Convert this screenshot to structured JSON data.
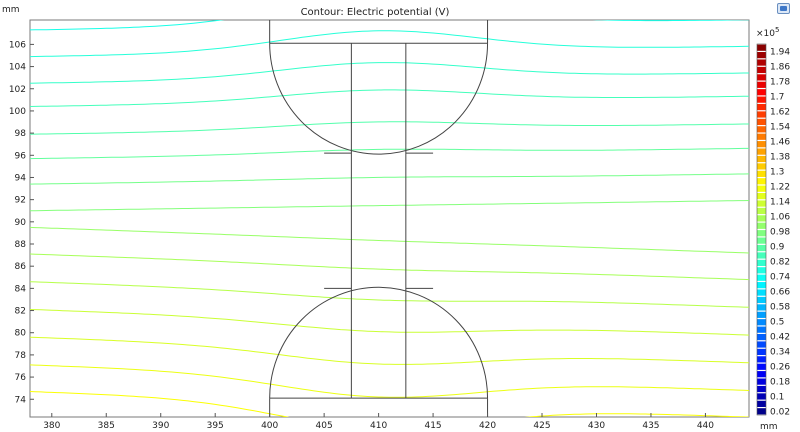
{
  "chart_data": {
    "type": "contour",
    "title": "Contour: Electric potential (V)",
    "x_unit": "mm",
    "y_unit": "mm",
    "xlim": [
      378,
      444
    ],
    "ylim": [
      72.4,
      108.2
    ],
    "x_ticks": [
      380,
      385,
      390,
      395,
      400,
      405,
      410,
      415,
      420,
      425,
      430,
      435,
      440
    ],
    "y_ticks": [
      74,
      76,
      78,
      80,
      82,
      84,
      86,
      88,
      90,
      92,
      94,
      96,
      98,
      100,
      102,
      104,
      106
    ],
    "colorbar": {
      "multiplier": "×10",
      "exponent": "5",
      "labels": [
        "1.94",
        "1.86",
        "1.78",
        "1.7",
        "1.62",
        "1.54",
        "1.46",
        "1.38",
        "1.3",
        "1.22",
        "1.14",
        "1.06",
        "0.98",
        "0.9",
        "0.82",
        "0.74",
        "0.66",
        "0.58",
        "0.5",
        "0.42",
        "0.34",
        "0.26",
        "0.18",
        "0.1",
        "0.02"
      ],
      "min": 0.0,
      "max": 1.98,
      "label_min": 0.02,
      "label_max": 1.94
    },
    "contour_levels": [
      {
        "y_far": 107.3,
        "value": 0.76
      },
      {
        "y_far": 104.9,
        "value": 0.79
      },
      {
        "y_far": 102.5,
        "value": 0.82
      },
      {
        "y_far": 100.4,
        "value": 0.85
      },
      {
        "y_far": 97.9,
        "value": 0.88
      },
      {
        "y_far": 95.7,
        "value": 0.91
      },
      {
        "y_far": 93.4,
        "value": 0.95
      },
      {
        "y_far": 91.0,
        "value": 0.98
      },
      {
        "y_far": 88.6,
        "value": 1.02
      },
      {
        "y_far": 86.2,
        "value": 1.05
      },
      {
        "y_far": 83.7,
        "value": 1.08
      },
      {
        "y_far": 81.2,
        "value": 1.12
      },
      {
        "y_far": 78.7,
        "value": 1.15
      },
      {
        "y_far": 76.2,
        "value": 1.19
      },
      {
        "y_far": 73.8,
        "value": 1.22
      }
    ],
    "geometry_outline": {
      "top_plate": {
        "x": [
          400,
          420
        ],
        "y": [
          106.1,
          108.2
        ]
      },
      "bottom_plate": {
        "x": [
          400,
          420
        ],
        "y": [
          72.4,
          74.1
        ]
      },
      "column": {
        "x": [
          407.5,
          412.5
        ],
        "y": [
          74.1,
          106.1
        ]
      },
      "upper_semicircle": {
        "cx": 410,
        "cy": 106.1,
        "r": 10
      },
      "lower_semicircle": {
        "cx": 410,
        "cy": 74.1,
        "r": 10
      }
    }
  },
  "toolbar": {
    "plot_button": "plot-window-icon"
  }
}
